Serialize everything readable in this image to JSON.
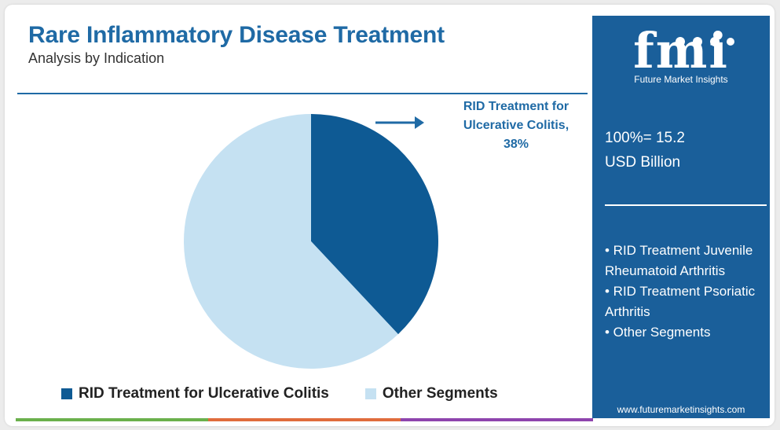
{
  "header": {
    "title": "Rare Inflammatory Disease Treatment",
    "subtitle": "Analysis by Indication"
  },
  "chart_data": {
    "type": "pie",
    "slices": [
      {
        "label": "RID Treatment for Ulcerative Colitis",
        "value": 38,
        "color": "#0e5a94"
      },
      {
        "label": "Other Segments",
        "value": 62,
        "color": "#c5e1f2"
      }
    ],
    "callout": {
      "line1": "RID Treatment for",
      "line2": "Ulcerative Colitis,",
      "line3": "38%"
    },
    "legend": [
      {
        "label": "RID Treatment for Ulcerative Colitis",
        "color": "#0e5a94"
      },
      {
        "label": "Other Segments",
        "color": "#c5e1f2"
      }
    ],
    "legend_position": "bottom"
  },
  "sidebar": {
    "logo_text": "fmi",
    "logo_caption": "Future Market Insights",
    "total_line1": "100%= 15.2",
    "total_line2": "USD Billion",
    "other_segments": [
      "• RID Treatment Juvenile Rheumatoid Arthritis",
      "• RID Treatment Psoriatic Arthritis",
      "• Other Segments"
    ],
    "website": "www.futuremarketinsights.com"
  },
  "colors": {
    "accent": "#1f6aa5",
    "sidebar_bg": "#1a5f9a",
    "bottom_bar": [
      "#6ab04c",
      "#e06c3c",
      "#8e44ad"
    ]
  }
}
